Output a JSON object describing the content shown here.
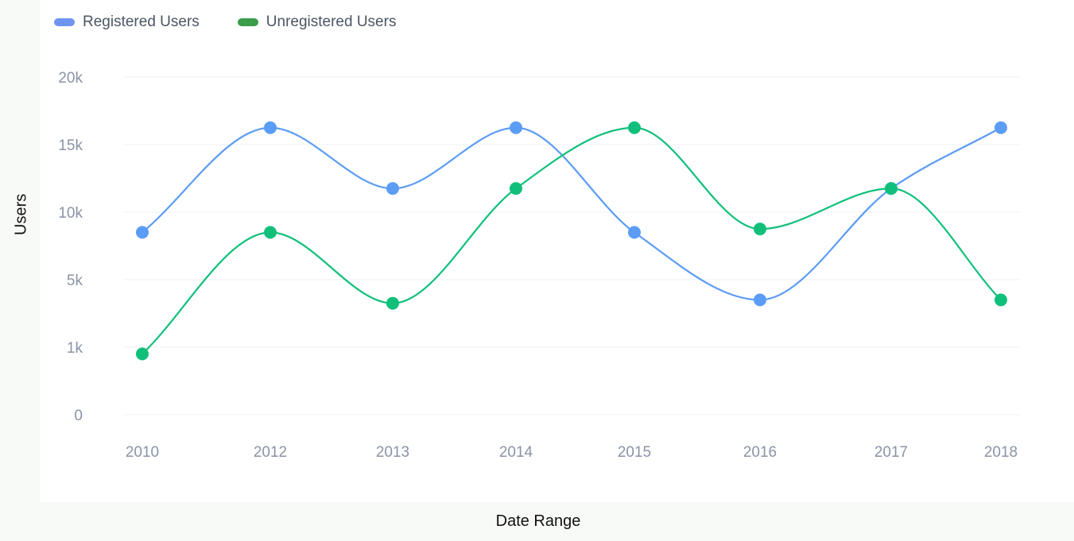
{
  "chart_data": {
    "type": "line",
    "title": "",
    "xlabel": "Date Range",
    "ylabel": "Users",
    "categories": [
      "2010",
      "2012",
      "2013",
      "2014",
      "2015",
      "2016",
      "2017",
      "2018"
    ],
    "y_ticks": [
      {
        "label": "0",
        "value": 0
      },
      {
        "label": "1k",
        "value": 1
      },
      {
        "label": "5k",
        "value": 2
      },
      {
        "label": "10k",
        "value": 3
      },
      {
        "label": "15k",
        "value": 4
      },
      {
        "label": "20k",
        "value": 5
      }
    ],
    "ylim": [
      0,
      5
    ],
    "grid": true,
    "legend_position": "top-left",
    "series": [
      {
        "name": "Registered Users",
        "color": "#5b9cf5",
        "legend_color": "#6f95f2",
        "values": [
          2.7,
          4.25,
          3.35,
          4.25,
          2.7,
          1.7,
          3.35,
          4.25
        ]
      },
      {
        "name": "Unregistered Users",
        "color": "#10c07a",
        "legend_color": "#3b9c4a",
        "values": [
          0.9,
          2.7,
          1.65,
          3.35,
          4.25,
          2.75,
          3.35,
          1.7
        ]
      }
    ]
  }
}
